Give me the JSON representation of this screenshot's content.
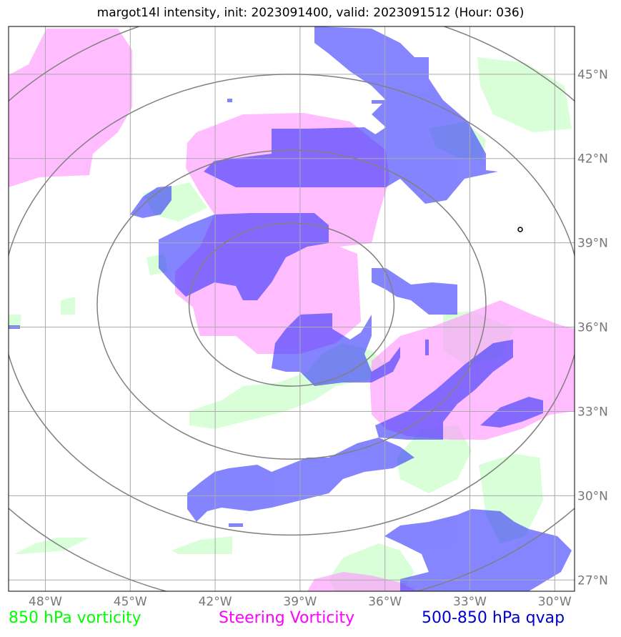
{
  "title": "margot14l intensity, init: 2023091400, valid: 2023091512 (Hour: 036)",
  "map": {
    "lon_range": [
      -49.3,
      -29.3
    ],
    "lat_range": [
      26.6,
      46.7
    ],
    "lon_ticks": [
      {
        "value": -48,
        "label": "48°W"
      },
      {
        "value": -45,
        "label": "45°W"
      },
      {
        "value": -42,
        "label": "42°W"
      },
      {
        "value": -39,
        "label": "39°W"
      },
      {
        "value": -36,
        "label": "36°W"
      },
      {
        "value": -33,
        "label": "33°W"
      },
      {
        "value": -30,
        "label": "30°W"
      }
    ],
    "lat_ticks": [
      {
        "value": 27,
        "label": "27°N"
      },
      {
        "value": 30,
        "label": "30°N"
      },
      {
        "value": 33,
        "label": "33°N"
      },
      {
        "value": 36,
        "label": "36°N"
      },
      {
        "value": 39,
        "label": "39°N"
      },
      {
        "value": 42,
        "label": "42°N"
      },
      {
        "value": 45,
        "label": "45°N"
      }
    ],
    "grid": true,
    "storm_center": {
      "lon": -39.3,
      "lat": 36.8
    },
    "range_rings_deg_lat": [
      2.9,
      5.5,
      8.2,
      10.8
    ],
    "colors": {
      "vort850": "#ccffcc",
      "steering": "#ff99ff",
      "qvap": "#3333ff",
      "rings": "#808080",
      "grid": "#aaaaaa"
    }
  },
  "legend": {
    "vort850": "850 hPa vorticity",
    "steering": "Steering Vorticity",
    "qvap": "500-850 hPa qvap"
  }
}
